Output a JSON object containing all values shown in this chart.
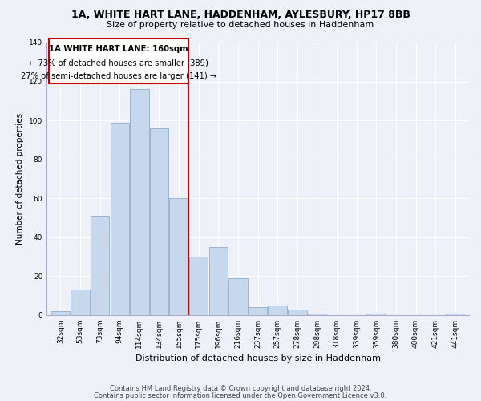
{
  "title1": "1A, WHITE HART LANE, HADDENHAM, AYLESBURY, HP17 8BB",
  "title2": "Size of property relative to detached houses in Haddenham",
  "xlabel": "Distribution of detached houses by size in Haddenham",
  "ylabel": "Number of detached properties",
  "bar_labels": [
    "32sqm",
    "53sqm",
    "73sqm",
    "94sqm",
    "114sqm",
    "134sqm",
    "155sqm",
    "175sqm",
    "196sqm",
    "216sqm",
    "237sqm",
    "257sqm",
    "278sqm",
    "298sqm",
    "318sqm",
    "339sqm",
    "359sqm",
    "380sqm",
    "400sqm",
    "421sqm",
    "441sqm"
  ],
  "bar_values": [
    2,
    13,
    51,
    99,
    116,
    96,
    60,
    30,
    35,
    19,
    4,
    5,
    3,
    1,
    0,
    0,
    1,
    0,
    0,
    0,
    1
  ],
  "bar_color": "#c8d8ec",
  "bar_edge_color": "#9ab4d4",
  "vline_color": "#cc0000",
  "annotation_line1": "1A WHITE HART LANE: 160sqm",
  "annotation_line2": "← 73% of detached houses are smaller (389)",
  "annotation_line3": "27% of semi-detached houses are larger (141) →",
  "annotation_box_color": "#ffffff",
  "annotation_box_edge": "#cc0000",
  "footer1": "Contains HM Land Registry data © Crown copyright and database right 2024.",
  "footer2": "Contains public sector information licensed under the Open Government Licence v3.0.",
  "ylim": [
    0,
    140
  ],
  "background_color": "#eef2f8",
  "grid_color": "#ffffff",
  "spine_color": "#aaaacc"
}
